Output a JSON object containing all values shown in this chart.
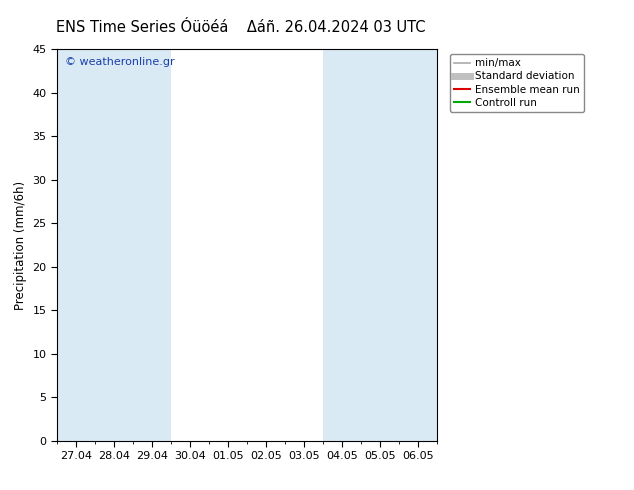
{
  "title": "ENS Time Series Óüöéá",
  "title2": "Δáñ. 26.04.2024 03 UTC",
  "ylabel": "Precipitation (mm/6h)",
  "ylim": [
    0,
    45
  ],
  "yticks": [
    0,
    5,
    10,
    15,
    20,
    25,
    30,
    35,
    40,
    45
  ],
  "xlabels": [
    "27.04",
    "28.04",
    "29.04",
    "30.04",
    "01.05",
    "02.05",
    "03.05",
    "04.05",
    "05.05",
    "06.05"
  ],
  "band_color": "#daeaf5",
  "background_color": "#ffffff",
  "watermark": "© weatheronline.gr",
  "watermark_color": "#1a3faa",
  "legend_items": [
    {
      "label": "min/max",
      "color": "#aaaaaa",
      "lw": 1.2
    },
    {
      "label": "Standard deviation",
      "color": "#c0c0c0",
      "lw": 5
    },
    {
      "label": "Ensemble mean run",
      "color": "#dd0000",
      "lw": 1.5
    },
    {
      "label": "Controll run",
      "color": "#00aa00",
      "lw": 1.5
    }
  ],
  "title_fontsize": 10.5,
  "tick_fontsize": 8,
  "ylabel_fontsize": 8.5,
  "legend_fontsize": 7.5
}
